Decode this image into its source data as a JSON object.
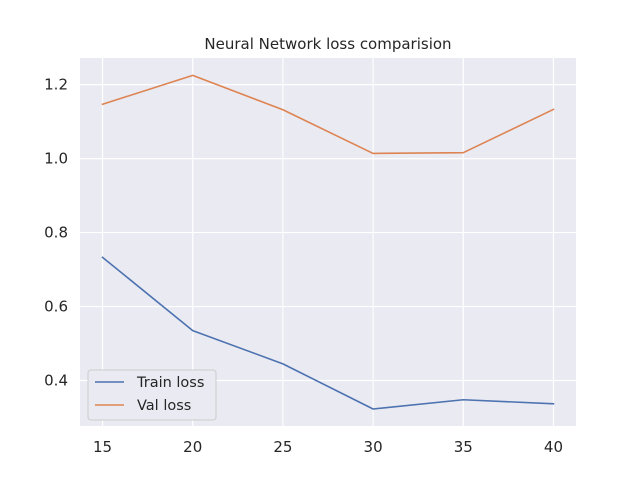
{
  "chart_data": {
    "type": "line",
    "title": "Neural Network loss comparision",
    "xlabel": "",
    "ylabel": "",
    "x": [
      15,
      20,
      25,
      30,
      35,
      40
    ],
    "xticks": [
      15,
      20,
      25,
      30,
      35,
      40
    ],
    "xtick_labels": [
      "15",
      "20",
      "25",
      "30",
      "35",
      "40"
    ],
    "yticks": [
      0.4,
      0.6,
      0.8,
      1.0,
      1.2
    ],
    "ytick_labels": [
      "0.4",
      "0.6",
      "0.8",
      "1.0",
      "1.2"
    ],
    "xlim": [
      13.75,
      41.25
    ],
    "ylim": [
      0.277,
      1.272
    ],
    "grid": true,
    "legend_position": "lower-left",
    "series": [
      {
        "name": "Train loss",
        "color": "#4c72b0",
        "values": [
          0.733,
          0.535,
          0.445,
          0.323,
          0.348,
          0.337
        ]
      },
      {
        "name": "Val loss",
        "color": "#dd8452",
        "values": [
          1.147,
          1.225,
          1.132,
          1.014,
          1.016,
          1.133
        ]
      }
    ],
    "colors": {
      "background": "#eaeaf2",
      "grid": "#ffffff",
      "text": "#262626"
    }
  }
}
